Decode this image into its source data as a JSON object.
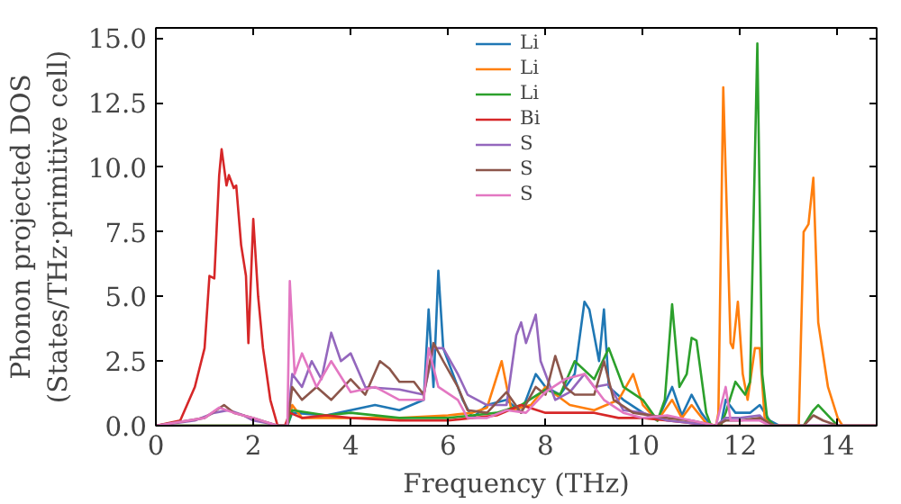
{
  "chart_data": {
    "type": "line",
    "xlabel": "Frequency (THz)",
    "ylabel": "Phonon projected DOS\n(States/THz·primitive cell)",
    "xlim": [
      0,
      14.8
    ],
    "ylim": [
      0,
      15.4
    ],
    "xticks": [
      0,
      2,
      4,
      6,
      8,
      10,
      12,
      14
    ],
    "yticks": [
      {
        "value": 0,
        "label": "0.0"
      },
      {
        "value": 2.5,
        "label": "2.5"
      },
      {
        "value": 5,
        "label": "5.0"
      },
      {
        "value": 7.5,
        "label": "7.5"
      },
      {
        "value": 10,
        "label": "10.0"
      },
      {
        "value": 12.5,
        "label": "12.5"
      },
      {
        "value": 15,
        "label": "15.0"
      }
    ],
    "legend": "top",
    "grid": false,
    "marker": "none",
    "line_style": "solid",
    "series": [
      {
        "name": "Li",
        "color": "#1f77b4",
        "x": [
          0,
          2.7,
          2.8,
          3.5,
          4,
          4.5,
          5,
          5.5,
          5.6,
          5.7,
          5.8,
          5.9,
          6,
          6.3,
          6.5,
          6.8,
          7.2,
          7.5,
          7.8,
          8,
          8.3,
          8.6,
          8.8,
          8.9,
          9.1,
          9.2,
          9.3,
          9.6,
          10,
          10.3,
          10.6,
          10.8,
          11,
          11.2,
          11.4,
          11.6,
          11.7,
          11.9,
          12.2,
          12.4,
          12.6,
          12.8,
          14.8
        ],
        "values": [
          0,
          0,
          0.5,
          0.4,
          0.6,
          0.8,
          0.6,
          1,
          4.5,
          1.5,
          6,
          3,
          2.5,
          1,
          0.3,
          0.8,
          1,
          0.5,
          2,
          1.5,
          1.2,
          2,
          4.8,
          4.5,
          2.5,
          4.5,
          1.5,
          1,
          0.5,
          0.2,
          1.5,
          0.4,
          1.2,
          0.5,
          0,
          0,
          1,
          0.5,
          0.5,
          0.8,
          0.2,
          0,
          0
        ]
      },
      {
        "name": "Li",
        "color": "#ff7f0e",
        "x": [
          0,
          2.7,
          2.8,
          3,
          4,
          5,
          6,
          6.5,
          6.8,
          7.1,
          7.3,
          7.7,
          8,
          8.5,
          9,
          9.5,
          9.8,
          10,
          10.3,
          10.6,
          10.8,
          11,
          11.3,
          11.5,
          11.55,
          11.65,
          11.8,
          11.85,
          11.95,
          12.05,
          12.15,
          12.3,
          12.4,
          12.5,
          12.7,
          13.2,
          13.3,
          13.4,
          13.5,
          13.6,
          13.8,
          14,
          14.1,
          14.8
        ],
        "values": [
          0,
          0,
          0.8,
          0.3,
          0.3,
          0.3,
          0.4,
          0.5,
          0.7,
          2.5,
          0.6,
          0.8,
          1.5,
          0.8,
          0.6,
          1,
          2,
          0.8,
          0.2,
          1,
          0.3,
          0.8,
          0.1,
          0,
          0.5,
          13.1,
          3.2,
          3,
          4.8,
          2,
          1,
          3,
          3,
          0.3,
          0,
          0,
          7.5,
          7.8,
          9.6,
          4,
          1.5,
          0.3,
          0,
          0
        ]
      },
      {
        "name": "Li",
        "color": "#2ca02c",
        "x": [
          0,
          2.7,
          2.8,
          3.5,
          4,
          5,
          6,
          6.5,
          7,
          7.5,
          8,
          8.3,
          8.6,
          9,
          9.3,
          9.6,
          10,
          10.3,
          10.45,
          10.6,
          10.75,
          10.9,
          11,
          11.1,
          11.3,
          11.4,
          11.6,
          11.7,
          11.9,
          12.1,
          12.2,
          12.35,
          12.45,
          12.55,
          12.7,
          13.3,
          13.5,
          13.6,
          13.8,
          14,
          14.8
        ],
        "values": [
          0,
          0,
          0.6,
          0.4,
          0.5,
          0.3,
          0.3,
          0.4,
          0.5,
          0.8,
          1.4,
          1.2,
          2.5,
          1.8,
          3,
          1.5,
          1,
          0.2,
          1,
          4.7,
          1.5,
          2,
          3.4,
          3.3,
          0.5,
          0,
          0,
          0.5,
          1.7,
          1.2,
          1.7,
          14.8,
          2,
          0.3,
          0,
          0,
          0.6,
          0.8,
          0.4,
          0,
          0
        ]
      },
      {
        "name": "Bi",
        "color": "#d62728",
        "x": [
          0,
          0.5,
          0.8,
          1.0,
          1.1,
          1.2,
          1.3,
          1.35,
          1.45,
          1.5,
          1.6,
          1.65,
          1.75,
          1.85,
          1.9,
          2.0,
          2.1,
          2.2,
          2.35,
          2.5,
          2.65,
          2.75,
          3,
          3.5,
          4,
          5,
          6,
          7,
          7.5,
          8,
          8.5,
          9,
          9.5,
          10,
          10.5,
          11,
          11.5,
          14.8
        ],
        "values": [
          0,
          0.2,
          1.5,
          3,
          5.8,
          5.7,
          9.7,
          10.7,
          9.3,
          9.7,
          9.2,
          9.3,
          7,
          5.8,
          3.2,
          8.0,
          5,
          3,
          1,
          0,
          0,
          0.5,
          0.3,
          0.4,
          0.3,
          0.2,
          0.2,
          0.4,
          0.8,
          0.5,
          0.5,
          0.5,
          0.3,
          0.3,
          0.2,
          0.1,
          0,
          0
        ]
      },
      {
        "name": "S",
        "color": "#9467bd",
        "x": [
          0,
          0.8,
          1.2,
          1.5,
          1.8,
          2,
          2.3,
          2.5,
          2.7,
          2.8,
          3,
          3.2,
          3.4,
          3.6,
          3.8,
          4,
          4.3,
          5,
          5.5,
          5.7,
          5.9,
          6.2,
          6.4,
          6.8,
          7.2,
          7.4,
          7.5,
          7.6,
          7.8,
          7.9,
          8.2,
          8.5,
          8.8,
          9,
          9.3,
          9.6,
          10,
          10.5,
          11,
          11.5,
          11.7,
          12,
          12.4,
          12.6,
          14.8
        ],
        "values": [
          0,
          0.2,
          0.5,
          0.6,
          0.4,
          0.2,
          0.1,
          0,
          0,
          2,
          1.5,
          2.5,
          1.8,
          3.6,
          2.5,
          2.8,
          1.5,
          1.4,
          1.2,
          3,
          3,
          2,
          1.2,
          0.8,
          0.8,
          3.5,
          4,
          3.2,
          4.3,
          2.5,
          1,
          1.3,
          2,
          1.5,
          1.6,
          0.6,
          0.5,
          0.2,
          0.1,
          0,
          0.3,
          0.3,
          0.4,
          0,
          0
        ]
      },
      {
        "name": "S",
        "color": "#8c564b",
        "x": [
          0,
          1,
          1.4,
          1.6,
          2,
          2.5,
          2.7,
          2.8,
          3,
          3.3,
          3.6,
          4,
          4.3,
          4.6,
          4.8,
          5,
          5.3,
          5.5,
          5.7,
          5.9,
          6.2,
          6.4,
          6.8,
          7.2,
          7.5,
          7.8,
          8,
          8.2,
          8.4,
          8.6,
          9,
          9.2,
          9.4,
          9.8,
          10.5,
          11,
          11.5,
          11.7,
          12,
          12.4,
          12.7,
          13.3,
          13.5,
          13.7,
          14,
          14.8
        ],
        "values": [
          0,
          0.3,
          0.8,
          0.5,
          0.3,
          0,
          0,
          1.5,
          1,
          1.5,
          1,
          1.8,
          1.2,
          2.5,
          2.2,
          1.7,
          1.7,
          1.2,
          3.2,
          2.5,
          1.5,
          0.6,
          0.5,
          1.3,
          0.5,
          1.5,
          1.2,
          2.7,
          1.5,
          1.2,
          1.2,
          2.5,
          1,
          0.5,
          0.3,
          0.2,
          0,
          0.2,
          0.2,
          0.3,
          0,
          0,
          0.4,
          0.2,
          0,
          0
        ]
      },
      {
        "name": "S",
        "color": "#e377c2",
        "x": [
          0,
          1,
          1.3,
          1.6,
          2,
          2.5,
          2.7,
          2.75,
          2.85,
          3,
          3.3,
          3.6,
          4,
          4.5,
          5,
          5.5,
          5.6,
          5.8,
          6.2,
          6.4,
          6.8,
          7.2,
          7.6,
          8,
          8.4,
          8.8,
          9.2,
          9.6,
          10,
          10.5,
          11,
          11.5,
          11.7,
          11.8,
          12.4,
          12.6,
          14.8
        ],
        "values": [
          0,
          0.3,
          0.7,
          0.5,
          0.3,
          0,
          0,
          5.6,
          2,
          2.8,
          1.5,
          2.5,
          1.3,
          1.5,
          1,
          1,
          3,
          1.5,
          1,
          0.3,
          0.3,
          0.6,
          0.5,
          1.3,
          1.8,
          2,
          1,
          0.5,
          0.3,
          0.4,
          0.2,
          0,
          1.5,
          0.2,
          0.2,
          0,
          0
        ]
      }
    ]
  }
}
